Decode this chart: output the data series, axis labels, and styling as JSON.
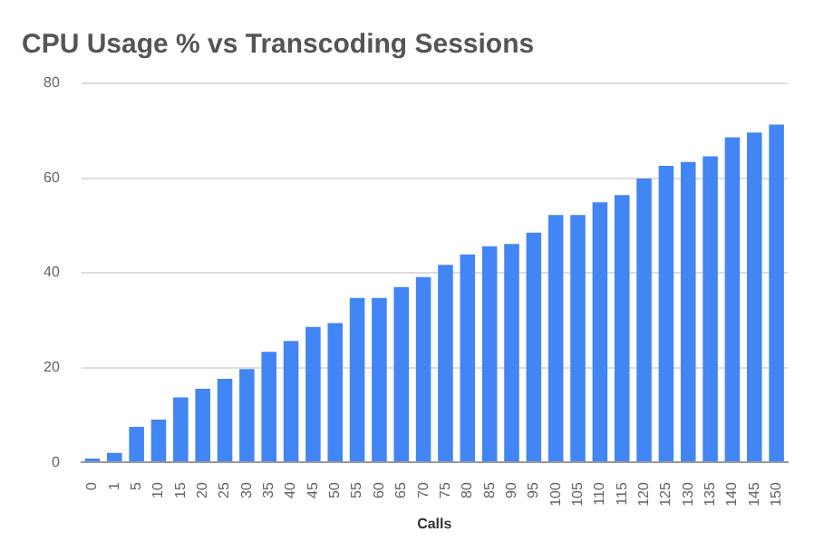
{
  "chart_data": {
    "type": "bar",
    "title": "CPU Usage % vs Transcoding Sessions",
    "xlabel": "Calls",
    "categories": [
      "0",
      "1",
      "5",
      "10",
      "15",
      "20",
      "25",
      "30",
      "35",
      "40",
      "45",
      "50",
      "55",
      "60",
      "65",
      "70",
      "75",
      "80",
      "85",
      "90",
      "95",
      "100",
      "105",
      "110",
      "115",
      "120",
      "125",
      "130",
      "135",
      "140",
      "145",
      "150"
    ],
    "values": [
      0.3,
      2,
      7.5,
      9,
      13.7,
      15.5,
      17.6,
      19.7,
      23.3,
      25.6,
      28.6,
      29.4,
      34.7,
      34.7,
      37,
      39.1,
      41.7,
      43.9,
      45.6,
      46.1,
      48.5,
      52.2,
      52.2,
      54.9,
      56.4,
      59.9,
      62.6,
      63.4,
      64.6,
      68.6,
      69.6,
      71.3
    ],
    "color": "#4285f4",
    "ylim": [
      0,
      80
    ],
    "yticks": [
      0,
      20,
      40,
      60,
      80
    ],
    "grid": "y",
    "legend": false
  }
}
